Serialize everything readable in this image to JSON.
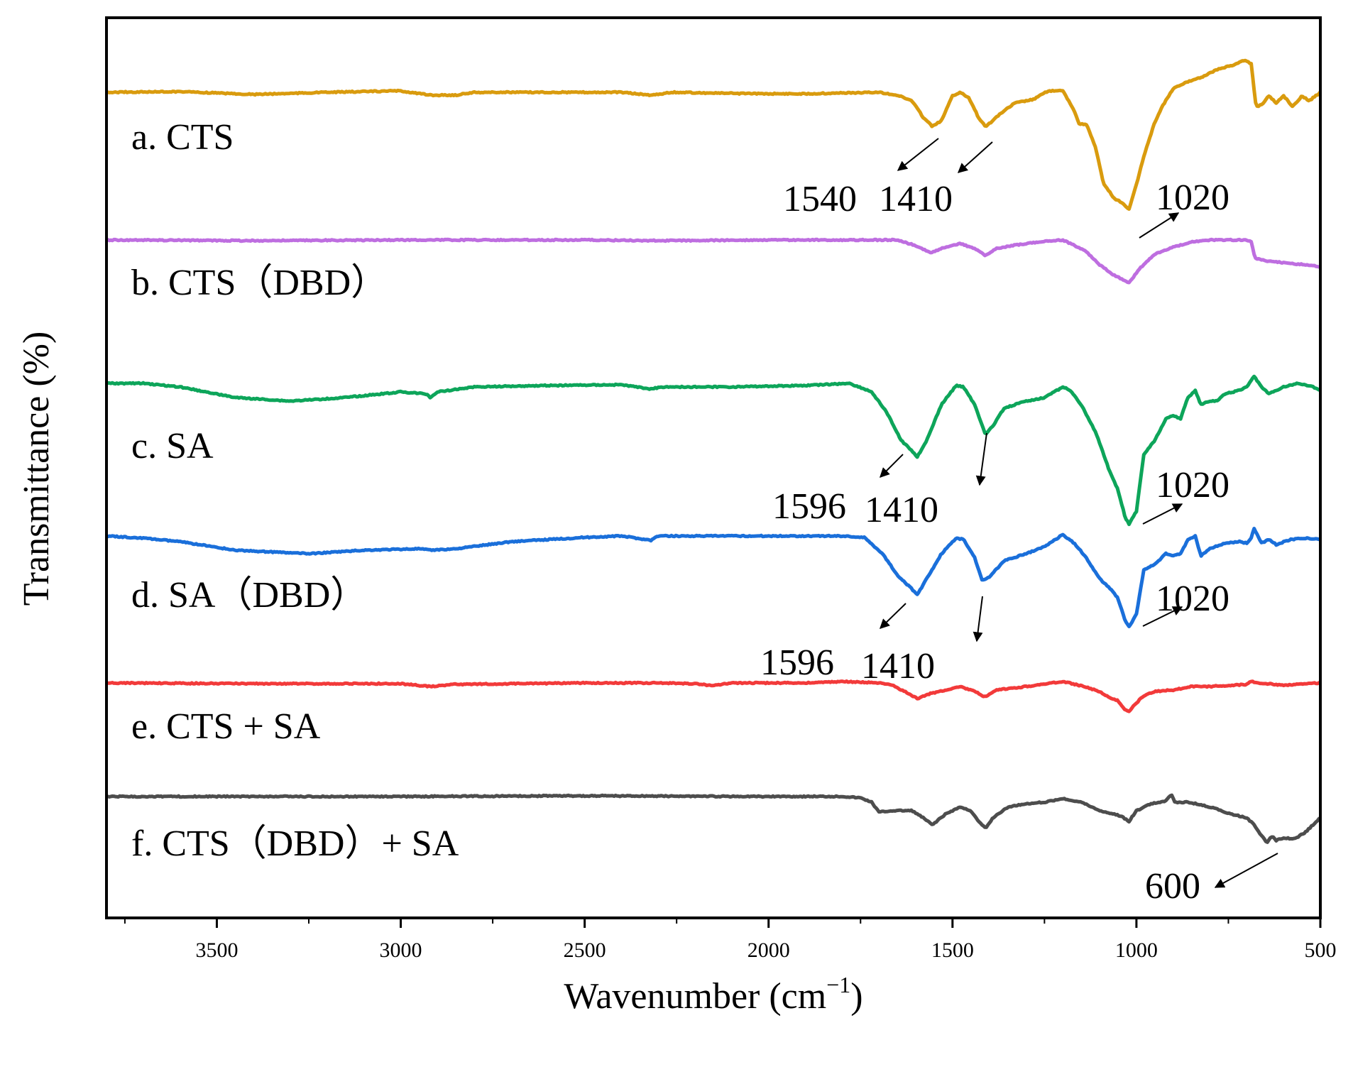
{
  "chart_data": {
    "type": "line",
    "title": "",
    "xlabel": "Wavenumber (cm",
    "xlabel_sup": "−1",
    "xlabel_close": ")",
    "ylabel": "Transmittance (%)",
    "xlim": [
      3800,
      500
    ],
    "x_ticks": [
      3500,
      3000,
      2500,
      2000,
      1500,
      1000,
      500
    ],
    "y_ticks": [],
    "grid": false,
    "legend": "inline labels",
    "series": [
      {
        "name": "CTS",
        "label": "a.  CTS",
        "color": "#D99B0E",
        "baseline": 85,
        "points": [
          [
            3800,
            0
          ],
          [
            3600,
            1
          ],
          [
            3400,
            -3
          ],
          [
            3200,
            0
          ],
          [
            3000,
            2
          ],
          [
            2920,
            -4
          ],
          [
            2850,
            -4
          ],
          [
            2800,
            0
          ],
          [
            2400,
            0
          ],
          [
            2320,
            -4
          ],
          [
            2260,
            0
          ],
          [
            2050,
            -2
          ],
          [
            1900,
            -2
          ],
          [
            1800,
            -1
          ],
          [
            1700,
            0
          ],
          [
            1650,
            -4
          ],
          [
            1610,
            -12
          ],
          [
            1580,
            -35
          ],
          [
            1555,
            -48
          ],
          [
            1530,
            -40
          ],
          [
            1500,
            -5
          ],
          [
            1480,
            0
          ],
          [
            1455,
            -8
          ],
          [
            1430,
            -35
          ],
          [
            1410,
            -48
          ],
          [
            1395,
            -42
          ],
          [
            1370,
            -30
          ],
          [
            1330,
            -15
          ],
          [
            1280,
            -10
          ],
          [
            1240,
            2
          ],
          [
            1200,
            2
          ],
          [
            1170,
            -25
          ],
          [
            1155,
            -45
          ],
          [
            1135,
            -45
          ],
          [
            1110,
            -80
          ],
          [
            1090,
            -128
          ],
          [
            1060,
            -150
          ],
          [
            1040,
            -155
          ],
          [
            1020,
            -165
          ],
          [
            1000,
            -130
          ],
          [
            980,
            -90
          ],
          [
            950,
            -42
          ],
          [
            930,
            -20
          ],
          [
            900,
            5
          ],
          [
            860,
            15
          ],
          [
            820,
            22
          ],
          [
            780,
            32
          ],
          [
            740,
            38
          ],
          [
            705,
            45
          ],
          [
            688,
            40
          ],
          [
            675,
            -20
          ],
          [
            660,
            -18
          ],
          [
            640,
            -5
          ],
          [
            620,
            -15
          ],
          [
            600,
            -5
          ],
          [
            575,
            -20
          ],
          [
            550,
            -5
          ],
          [
            530,
            -12
          ],
          [
            500,
            0
          ]
        ]
      },
      {
        "name": "CTS (DBD)",
        "label": "b.  CTS（DBD）",
        "color": "#BE6EE0",
        "baseline": 260,
        "points": [
          [
            3800,
            0
          ],
          [
            3400,
            -1
          ],
          [
            3000,
            0
          ],
          [
            2500,
            0
          ],
          [
            2300,
            -1
          ],
          [
            2000,
            0
          ],
          [
            1800,
            0
          ],
          [
            1650,
            0
          ],
          [
            1600,
            -8
          ],
          [
            1560,
            -18
          ],
          [
            1520,
            -10
          ],
          [
            1480,
            -5
          ],
          [
            1440,
            -12
          ],
          [
            1410,
            -22
          ],
          [
            1380,
            -12
          ],
          [
            1340,
            -8
          ],
          [
            1250,
            -2
          ],
          [
            1200,
            0
          ],
          [
            1160,
            -10
          ],
          [
            1140,
            -15
          ],
          [
            1100,
            -35
          ],
          [
            1060,
            -50
          ],
          [
            1040,
            -55
          ],
          [
            1020,
            -60
          ],
          [
            990,
            -40
          ],
          [
            950,
            -20
          ],
          [
            900,
            -10
          ],
          [
            850,
            -3
          ],
          [
            800,
            0
          ],
          [
            700,
            0
          ],
          [
            688,
            -2
          ],
          [
            678,
            -26
          ],
          [
            640,
            -30
          ],
          [
            600,
            -32
          ],
          [
            560,
            -34
          ],
          [
            520,
            -36
          ],
          [
            500,
            -38
          ]
        ]
      },
      {
        "name": "SA",
        "label": "c.  SA",
        "color": "#0DA55A",
        "baseline": 425,
        "points": [
          [
            3800,
            0
          ],
          [
            3700,
            0
          ],
          [
            3600,
            -5
          ],
          [
            3450,
            -20
          ],
          [
            3300,
            -25
          ],
          [
            3150,
            -20
          ],
          [
            3000,
            -12
          ],
          [
            2930,
            -15
          ],
          [
            2920,
            -20
          ],
          [
            2900,
            -12
          ],
          [
            2800,
            -5
          ],
          [
            2600,
            -3
          ],
          [
            2400,
            -2
          ],
          [
            2320,
            -8
          ],
          [
            2290,
            -5
          ],
          [
            2100,
            -5
          ],
          [
            1900,
            -3
          ],
          [
            1780,
            0
          ],
          [
            1720,
            -12
          ],
          [
            1680,
            -40
          ],
          [
            1640,
            -80
          ],
          [
            1610,
            -95
          ],
          [
            1596,
            -104
          ],
          [
            1570,
            -80
          ],
          [
            1530,
            -30
          ],
          [
            1490,
            -3
          ],
          [
            1470,
            -5
          ],
          [
            1440,
            -30
          ],
          [
            1410,
            -72
          ],
          [
            1390,
            -60
          ],
          [
            1360,
            -35
          ],
          [
            1300,
            -25
          ],
          [
            1250,
            -20
          ],
          [
            1200,
            -5
          ],
          [
            1180,
            -10
          ],
          [
            1150,
            -30
          ],
          [
            1110,
            -70
          ],
          [
            1070,
            -128
          ],
          [
            1050,
            -150
          ],
          [
            1030,
            -190
          ],
          [
            1020,
            -198
          ],
          [
            1000,
            -180
          ],
          [
            980,
            -100
          ],
          [
            950,
            -80
          ],
          [
            920,
            -50
          ],
          [
            900,
            -45
          ],
          [
            880,
            -50
          ],
          [
            860,
            -20
          ],
          [
            840,
            -10
          ],
          [
            825,
            -30
          ],
          [
            800,
            -25
          ],
          [
            780,
            -25
          ],
          [
            760,
            -15
          ],
          [
            720,
            -10
          ],
          [
            700,
            -5
          ],
          [
            680,
            10
          ],
          [
            660,
            -5
          ],
          [
            640,
            -15
          ],
          [
            620,
            -10
          ],
          [
            600,
            -5
          ],
          [
            560,
            0
          ],
          [
            520,
            -5
          ],
          [
            500,
            -10
          ]
        ]
      },
      {
        "name": "SA (DBD)",
        "label": "d.  SA（DBD）",
        "color": "#1A6FDA",
        "baseline": 612,
        "points": [
          [
            3800,
            0
          ],
          [
            3700,
            -3
          ],
          [
            3600,
            -8
          ],
          [
            3450,
            -20
          ],
          [
            3250,
            -25
          ],
          [
            3100,
            -20
          ],
          [
            2950,
            -18
          ],
          [
            2920,
            -20
          ],
          [
            2850,
            -18
          ],
          [
            2700,
            -8
          ],
          [
            2500,
            -2
          ],
          [
            2400,
            0
          ],
          [
            2320,
            -6
          ],
          [
            2300,
            0
          ],
          [
            2000,
            0
          ],
          [
            1800,
            0
          ],
          [
            1740,
            -2
          ],
          [
            1690,
            -25
          ],
          [
            1650,
            -55
          ],
          [
            1610,
            -75
          ],
          [
            1596,
            -83
          ],
          [
            1570,
            -60
          ],
          [
            1530,
            -25
          ],
          [
            1490,
            -3
          ],
          [
            1470,
            -5
          ],
          [
            1440,
            -30
          ],
          [
            1420,
            -62
          ],
          [
            1400,
            -58
          ],
          [
            1360,
            -35
          ],
          [
            1300,
            -25
          ],
          [
            1250,
            -15
          ],
          [
            1200,
            2
          ],
          [
            1170,
            -10
          ],
          [
            1140,
            -28
          ],
          [
            1100,
            -60
          ],
          [
            1070,
            -75
          ],
          [
            1050,
            -88
          ],
          [
            1030,
            -120
          ],
          [
            1020,
            -128
          ],
          [
            1000,
            -110
          ],
          [
            980,
            -48
          ],
          [
            950,
            -40
          ],
          [
            920,
            -25
          ],
          [
            900,
            -28
          ],
          [
            880,
            -25
          ],
          [
            860,
            -5
          ],
          [
            840,
            0
          ],
          [
            825,
            -28
          ],
          [
            800,
            -18
          ],
          [
            760,
            -10
          ],
          [
            720,
            -8
          ],
          [
            700,
            -10
          ],
          [
            690,
            -5
          ],
          [
            680,
            10
          ],
          [
            660,
            -10
          ],
          [
            640,
            -5
          ],
          [
            620,
            -12
          ],
          [
            580,
            -5
          ],
          [
            540,
            -3
          ],
          [
            500,
            -5
          ]
        ]
      },
      {
        "name": "CTS + SA",
        "label": "e.  CTS + SA",
        "color": "#F23A3A",
        "baseline": 795,
        "points": [
          [
            3800,
            0
          ],
          [
            3400,
            -1
          ],
          [
            3000,
            -1
          ],
          [
            2920,
            -5
          ],
          [
            2850,
            -2
          ],
          [
            2500,
            0
          ],
          [
            2300,
            0
          ],
          [
            2200,
            -1
          ],
          [
            2150,
            -4
          ],
          [
            2100,
            0
          ],
          [
            1900,
            0
          ],
          [
            1800,
            2
          ],
          [
            1700,
            0
          ],
          [
            1660,
            -4
          ],
          [
            1620,
            -15
          ],
          [
            1596,
            -22
          ],
          [
            1560,
            -15
          ],
          [
            1520,
            -10
          ],
          [
            1480,
            -5
          ],
          [
            1440,
            -12
          ],
          [
            1410,
            -20
          ],
          [
            1380,
            -10
          ],
          [
            1300,
            -5
          ],
          [
            1200,
            2
          ],
          [
            1150,
            -4
          ],
          [
            1100,
            -12
          ],
          [
            1070,
            -22
          ],
          [
            1050,
            -25
          ],
          [
            1030,
            -38
          ],
          [
            1020,
            -40
          ],
          [
            1000,
            -28
          ],
          [
            980,
            -18
          ],
          [
            950,
            -12
          ],
          [
            900,
            -10
          ],
          [
            850,
            -5
          ],
          [
            800,
            -5
          ],
          [
            700,
            -2
          ],
          [
            688,
            2
          ],
          [
            670,
            0
          ],
          [
            600,
            -3
          ],
          [
            500,
            0
          ]
        ]
      },
      {
        "name": "CTS (DBD) + SA",
        "label": "f.  CTS（DBD）+ SA",
        "color": "#4D4D4D",
        "baseline": 1118,
        "points": [
          [
            3800,
            0
          ],
          [
            3500,
            0
          ],
          [
            3000,
            0
          ],
          [
            2500,
            1
          ],
          [
            2000,
            0
          ],
          [
            1800,
            0
          ],
          [
            1750,
            -2
          ],
          [
            1720,
            -8
          ],
          [
            1700,
            -22
          ],
          [
            1660,
            -20
          ],
          [
            1610,
            -20
          ],
          [
            1580,
            -30
          ],
          [
            1555,
            -40
          ],
          [
            1520,
            -25
          ],
          [
            1480,
            -15
          ],
          [
            1450,
            -20
          ],
          [
            1430,
            -35
          ],
          [
            1410,
            -45
          ],
          [
            1390,
            -30
          ],
          [
            1350,
            -15
          ],
          [
            1300,
            -10
          ],
          [
            1250,
            -8
          ],
          [
            1200,
            -3
          ],
          [
            1150,
            -8
          ],
          [
            1100,
            -20
          ],
          [
            1060,
            -25
          ],
          [
            1040,
            -28
          ],
          [
            1020,
            -35
          ],
          [
            1000,
            -20
          ],
          [
            960,
            -10
          ],
          [
            920,
            -6
          ],
          [
            905,
            3
          ],
          [
            895,
            -8
          ],
          [
            860,
            -8
          ],
          [
            820,
            -12
          ],
          [
            780,
            -18
          ],
          [
            740,
            -25
          ],
          [
            700,
            -30
          ],
          [
            680,
            -40
          ],
          [
            660,
            -55
          ],
          [
            645,
            -65
          ],
          [
            630,
            -55
          ],
          [
            620,
            -62
          ],
          [
            600,
            -58
          ],
          [
            570,
            -60
          ],
          [
            540,
            -50
          ],
          [
            500,
            -30
          ]
        ]
      }
    ],
    "annotations": [
      {
        "text": "1540",
        "series": 0
      },
      {
        "text": "1410",
        "series": 0
      },
      {
        "text": "1020",
        "series": 0
      },
      {
        "text": "1596",
        "series": 2
      },
      {
        "text": "1410",
        "series": 2
      },
      {
        "text": "1020",
        "series": 2
      },
      {
        "text": "1596",
        "series": 3
      },
      {
        "text": "1410",
        "series": 3
      },
      {
        "text": "1020",
        "series": 3
      },
      {
        "text": "600",
        "series": 5
      }
    ]
  }
}
